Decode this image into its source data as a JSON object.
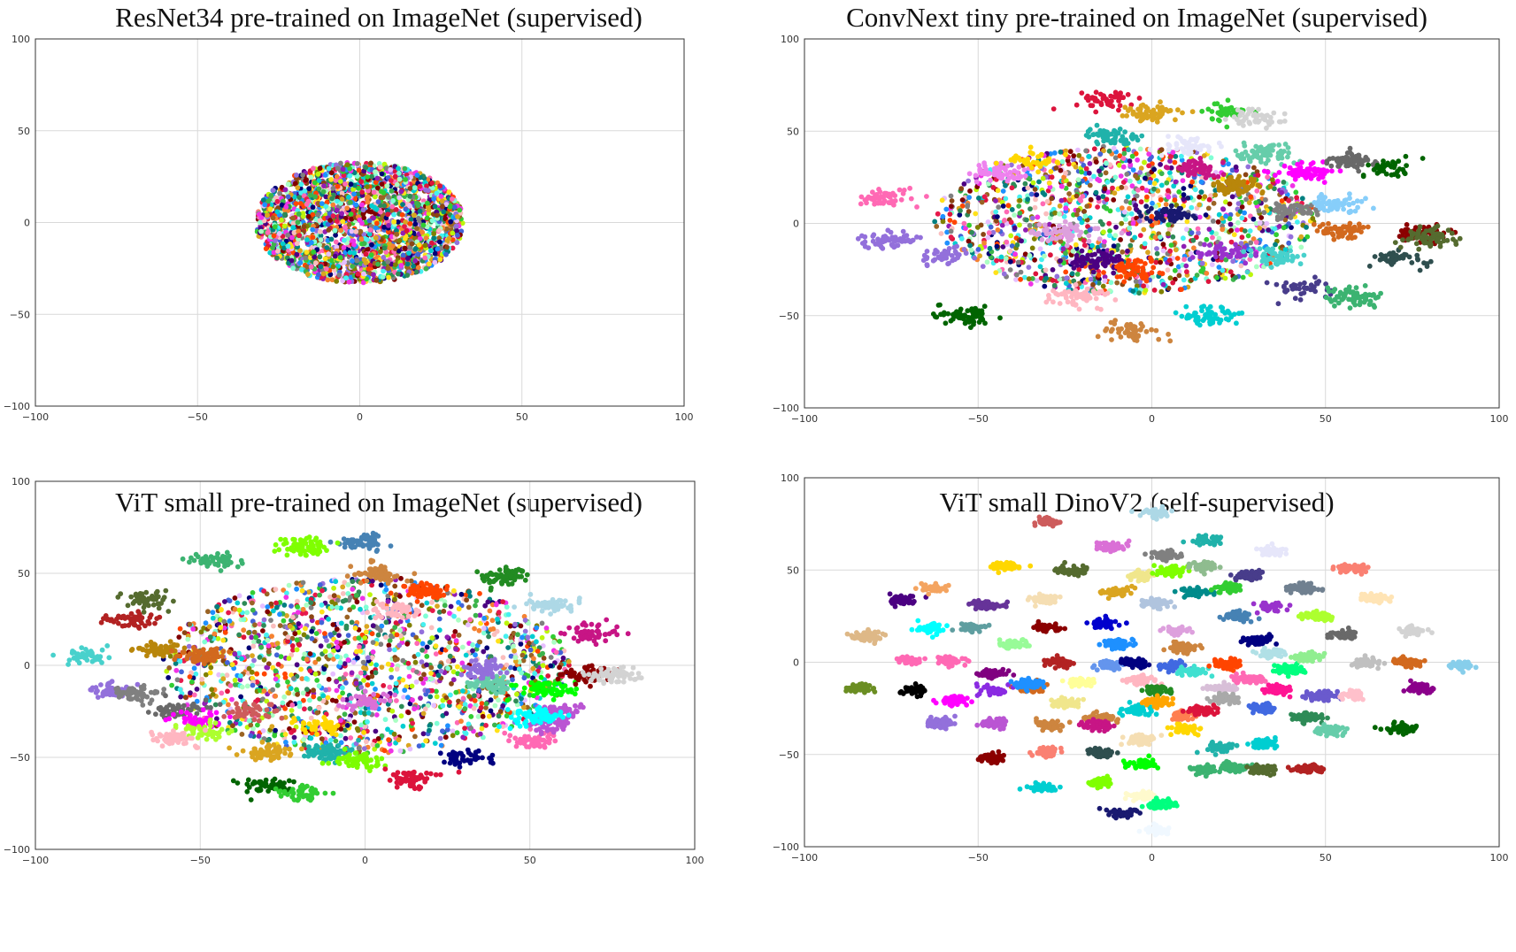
{
  "chart_data": [
    {
      "type": "scatter",
      "title": "ResNet34 pre-trained on ImageNet (supervised)",
      "xlim": [
        -100,
        100
      ],
      "ylim": [
        -100,
        100
      ],
      "xticks": [
        -100,
        -50,
        0,
        50,
        100
      ],
      "yticks": [
        -100,
        -50,
        0,
        50,
        100
      ],
      "grid": true,
      "pattern": "single-blob",
      "blob": {
        "cx": 0,
        "cy": 0,
        "rx": 32,
        "ry": 33,
        "points": 2400
      }
    },
    {
      "type": "scatter",
      "title": "ConvNext tiny pre-trained on ImageNet (supervised)",
      "xlim": [
        -100,
        100
      ],
      "ylim": [
        -100,
        100
      ],
      "xticks": [
        -100,
        -50,
        0,
        50,
        100
      ],
      "yticks": [
        -100,
        -50,
        0,
        50,
        100
      ],
      "grid": true,
      "pattern": "clusters-with-noise",
      "clusters": [
        [
          -76,
          14,
          "#ff69b4"
        ],
        [
          -76,
          -9,
          "#9370db"
        ],
        [
          -59,
          -18,
          "#9370db"
        ],
        [
          -53,
          -50,
          "#006400"
        ],
        [
          -44,
          28,
          "#ee82ee"
        ],
        [
          -35,
          34,
          "#ffd700"
        ],
        [
          -27,
          -5,
          "#dda0dd"
        ],
        [
          -21,
          -40,
          "#ffb6c1"
        ],
        [
          -16,
          -20,
          "#4b0082"
        ],
        [
          -13,
          67,
          "#dc143c"
        ],
        [
          -11,
          47,
          "#20b2aa"
        ],
        [
          -6,
          -25,
          "#ff4500"
        ],
        [
          -6,
          -58,
          "#cd853f"
        ],
        [
          0,
          60,
          "#daa520"
        ],
        [
          5,
          5,
          "#191970"
        ],
        [
          10,
          42,
          "#e6e6fa"
        ],
        [
          13,
          30,
          "#c71585"
        ],
        [
          16,
          -50,
          "#00ced1"
        ],
        [
          20,
          60,
          "#32cd32"
        ],
        [
          22,
          -16,
          "#9932cc"
        ],
        [
          24,
          20,
          "#b8860b"
        ],
        [
          30,
          57,
          "#d3d3d3"
        ],
        [
          32,
          38,
          "#66cdaa"
        ],
        [
          36,
          -18,
          "#48d1cc"
        ],
        [
          40,
          7,
          "#808080"
        ],
        [
          44,
          -35,
          "#483d8b"
        ],
        [
          45,
          28,
          "#ff00ff"
        ],
        [
          53,
          10,
          "#87cefa"
        ],
        [
          55,
          -4,
          "#d2691e"
        ],
        [
          58,
          34,
          "#696969"
        ],
        [
          58,
          -40,
          "#3cb371"
        ],
        [
          68,
          30,
          "#006400"
        ],
        [
          72,
          -19,
          "#2f4f4f"
        ],
        [
          77,
          -6,
          "#8b0000"
        ],
        [
          80,
          -8,
          "#556b2f"
        ]
      ],
      "cluster_spread": 4.5,
      "noise": {
        "cx": -8,
        "cy": 2,
        "rx": 55,
        "ry": 40,
        "points": 1400
      }
    },
    {
      "type": "scatter",
      "title": "ViT small pre-trained on ImageNet (supervised)",
      "xlim": [
        -100,
        100
      ],
      "ylim": [
        -100,
        100
      ],
      "xticks": [
        -100,
        -50,
        0,
        50,
        100
      ],
      "yticks": [
        -100,
        -50,
        0,
        50,
        100
      ],
      "grid": true,
      "pattern": "clusters-with-noise",
      "clusters": [
        [
          -44,
          57,
          "#3cb371"
        ],
        [
          -84,
          5,
          "#48d1cc"
        ],
        [
          -78,
          -14,
          "#9370db"
        ],
        [
          -70,
          -15,
          "#808080"
        ],
        [
          -58,
          -24,
          "#696969"
        ],
        [
          -51,
          -30,
          "#ff00ff"
        ],
        [
          -49,
          -35,
          "#adff2f"
        ],
        [
          -63,
          9,
          "#b8860b"
        ],
        [
          -57,
          -40,
          "#ffb6c1"
        ],
        [
          -50,
          5,
          "#d2691e"
        ],
        [
          -66,
          36,
          "#556b2f"
        ],
        [
          -71,
          24,
          "#b22222"
        ],
        [
          -35,
          -25,
          "#cd5c5c"
        ],
        [
          -30,
          -47,
          "#daa520"
        ],
        [
          -30,
          -65,
          "#006400"
        ],
        [
          -19,
          -70,
          "#32cd32"
        ],
        [
          -14,
          -33,
          "#ffd700"
        ],
        [
          -12,
          -47,
          "#20b2aa"
        ],
        [
          0,
          -20,
          "#da70d6"
        ],
        [
          4,
          50,
          "#cd853f"
        ],
        [
          0,
          67,
          "#4682b4"
        ],
        [
          -2,
          -52,
          "#7cfc00"
        ],
        [
          13,
          -62,
          "#dc143c"
        ],
        [
          10,
          30,
          "#ffb6c1"
        ],
        [
          18,
          40,
          "#ff4500"
        ],
        [
          30,
          -50,
          "#000080"
        ],
        [
          38,
          -10,
          "#66cdaa"
        ],
        [
          35,
          -2,
          "#9370db"
        ],
        [
          43,
          48,
          "#228b22"
        ],
        [
          55,
          -13,
          "#00ff00"
        ],
        [
          52,
          -40,
          "#ff69b4"
        ],
        [
          56,
          -32,
          "#ba55d3"
        ],
        [
          60,
          -25,
          "#ba55d3"
        ],
        [
          57,
          33,
          "#add8e6"
        ],
        [
          67,
          -5,
          "#8b0000"
        ],
        [
          67,
          18,
          "#c71585"
        ],
        [
          76,
          -5,
          "#d3d3d3"
        ],
        [
          52,
          -28,
          "#00ffff"
        ],
        [
          -19,
          64,
          "#7fff00"
        ]
      ],
      "cluster_spread": 4.2,
      "noise": {
        "cx": 0,
        "cy": 0,
        "rx": 62,
        "ry": 48,
        "points": 1700
      }
    },
    {
      "type": "scatter",
      "title": "ViT small DinoV2 (self-supervised)",
      "xlim": [
        -100,
        100
      ],
      "ylim": [
        -100,
        100
      ],
      "xticks": [
        -100,
        -50,
        0,
        50,
        100
      ],
      "yticks": [
        -100,
        -50,
        0,
        50,
        100
      ],
      "grid": true,
      "pattern": "separated-clusters",
      "clusters": [
        [
          -30,
          76,
          "#cd5c5c"
        ],
        [
          1,
          81,
          "#add8e6"
        ],
        [
          -12,
          63,
          "#da70d6"
        ],
        [
          -42,
          52,
          "#ffd700"
        ],
        [
          -23,
          50,
          "#556b2f"
        ],
        [
          -10,
          38,
          "#daa520"
        ],
        [
          -3,
          47,
          "#f0e68c"
        ],
        [
          4,
          58,
          "#808080"
        ],
        [
          6,
          50,
          "#7fff00"
        ],
        [
          16,
          66,
          "#20b2aa"
        ],
        [
          15,
          52,
          "#8fbc8f"
        ],
        [
          28,
          47,
          "#483d8b"
        ],
        [
          35,
          60,
          "#e6e6fa"
        ],
        [
          44,
          40,
          "#708090"
        ],
        [
          58,
          51,
          "#fa8072"
        ],
        [
          -72,
          34,
          "#4b0082"
        ],
        [
          -63,
          40,
          "#f4a460"
        ],
        [
          -47,
          31,
          "#663399"
        ],
        [
          -31,
          34,
          "#f5deb3"
        ],
        [
          -14,
          21,
          "#0000cd"
        ],
        [
          1,
          32,
          "#b0c4de"
        ],
        [
          7,
          17,
          "#dda0dd"
        ],
        [
          12,
          38,
          "#008b8b"
        ],
        [
          22,
          40,
          "#32cd32"
        ],
        [
          25,
          25,
          "#4682b4"
        ],
        [
          34,
          30,
          "#9932cc"
        ],
        [
          31,
          12,
          "#000080"
        ],
        [
          48,
          25,
          "#adff2f"
        ],
        [
          55,
          15,
          "#696969"
        ],
        [
          64,
          35,
          "#ffe4b5"
        ],
        [
          75,
          17,
          "#d3d3d3"
        ],
        [
          -82,
          14,
          "#deb887"
        ],
        [
          -64,
          18,
          "#00ffff"
        ],
        [
          -52,
          19,
          "#5f9ea0"
        ],
        [
          -40,
          10,
          "#98fb98"
        ],
        [
          -30,
          19,
          "#8b0000"
        ],
        [
          -10,
          10,
          "#1e90ff"
        ],
        [
          -70,
          1,
          "#ff69b4"
        ],
        [
          -58,
          1,
          "#ff69b4"
        ],
        [
          -46,
          -6,
          "#800080"
        ],
        [
          -34,
          -14,
          "#d2691e"
        ],
        [
          -26,
          0,
          "#b22222"
        ],
        [
          -20,
          -11,
          "#ffff99"
        ],
        [
          -12,
          -2,
          "#6495ed"
        ],
        [
          -5,
          0,
          "#000080"
        ],
        [
          -3,
          -10,
          "#ffb6c1"
        ],
        [
          6,
          -2,
          "#4169e1"
        ],
        [
          9,
          8,
          "#cd853f"
        ],
        [
          2,
          -15,
          "#228b22"
        ],
        [
          12,
          -5,
          "#40e0d0"
        ],
        [
          22,
          -1,
          "#ff4500"
        ],
        [
          20,
          -14,
          "#d8bfd8"
        ],
        [
          28,
          -9,
          "#ff69b4"
        ],
        [
          34,
          5,
          "#b0e0e6"
        ],
        [
          36,
          -15,
          "#ff1493"
        ],
        [
          40,
          -4,
          "#00ff7f"
        ],
        [
          45,
          3,
          "#90ee90"
        ],
        [
          49,
          -18,
          "#6a5acd"
        ],
        [
          58,
          -18,
          "#ffc0cb"
        ],
        [
          62,
          0,
          "#c0c0c0"
        ],
        [
          74,
          0,
          "#d2691e"
        ],
        [
          77,
          -14,
          "#8b008b"
        ],
        [
          89,
          -2,
          "#87ceeb"
        ],
        [
          -84,
          -14,
          "#6b8e23"
        ],
        [
          -68,
          -15,
          "#000000"
        ],
        [
          -57,
          -21,
          "#ff00ff"
        ],
        [
          -45,
          -15,
          "#8a2be2"
        ],
        [
          -36,
          -12,
          "#1e90ff"
        ],
        [
          -25,
          -22,
          "#f0e68c"
        ],
        [
          -15,
          -30,
          "#cd853f"
        ],
        [
          -4,
          -26,
          "#00ced1"
        ],
        [
          2,
          -21,
          "#ffa500"
        ],
        [
          9,
          -29,
          "#ff7f50"
        ],
        [
          15,
          -26,
          "#dc143c"
        ],
        [
          21,
          -20,
          "#a9a9a9"
        ],
        [
          32,
          -25,
          "#4169e1"
        ],
        [
          45,
          -30,
          "#2e8b57"
        ],
        [
          -61,
          -33,
          "#9370db"
        ],
        [
          -46,
          -33,
          "#ba55d3"
        ],
        [
          -30,
          -34,
          "#cd853f"
        ],
        [
          -16,
          -34,
          "#c71585"
        ],
        [
          -3,
          -42,
          "#f5deb3"
        ],
        [
          9,
          -36,
          "#ffd700"
        ],
        [
          20,
          -46,
          "#20b2aa"
        ],
        [
          32,
          -44,
          "#00ced1"
        ],
        [
          51,
          -37,
          "#66cdaa"
        ],
        [
          72,
          -36,
          "#006400"
        ],
        [
          -46,
          -52,
          "#8b0000"
        ],
        [
          -30,
          -49,
          "#fa8072"
        ],
        [
          -15,
          -49,
          "#2f4f4f"
        ],
        [
          -3,
          -55,
          "#00ff00"
        ],
        [
          15,
          -58,
          "#3cb371"
        ],
        [
          23,
          -57,
          "#3cb371"
        ],
        [
          32,
          -58,
          "#556b2f"
        ],
        [
          45,
          -58,
          "#b22222"
        ],
        [
          -31,
          -68,
          "#00ced1"
        ],
        [
          -15,
          -65,
          "#7fff00"
        ],
        [
          -3,
          -72,
          "#fffacd"
        ],
        [
          3,
          -77,
          "#00ff7f"
        ],
        [
          -9,
          -82,
          "#191970"
        ],
        [
          2,
          -91,
          "#f0f8ff"
        ]
      ],
      "cluster_spread": 2.3
    }
  ]
}
